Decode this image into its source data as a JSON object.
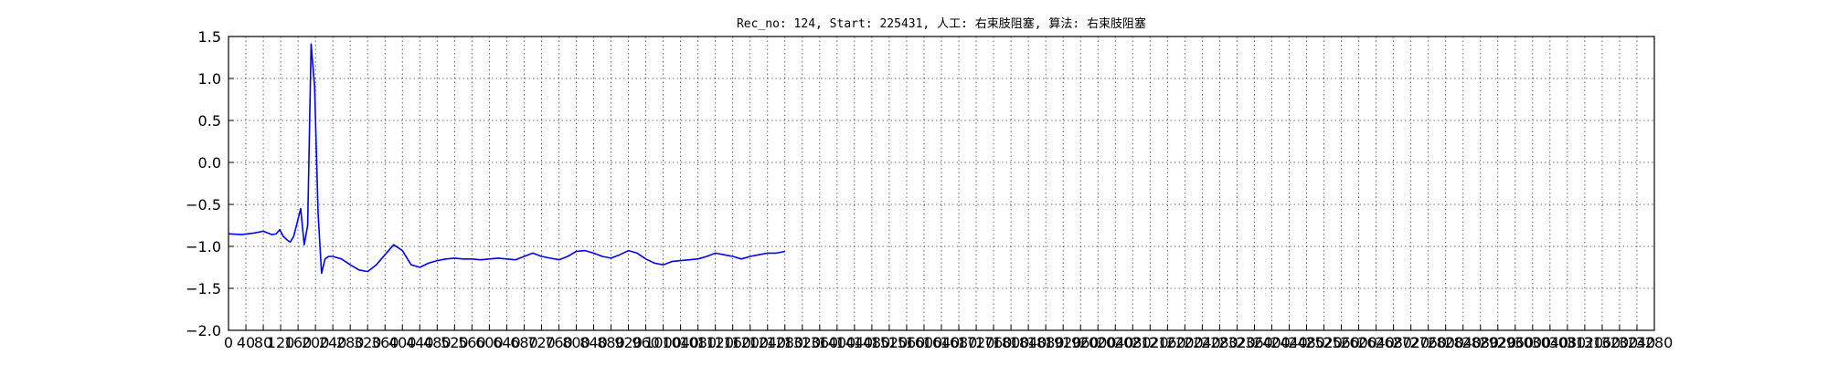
{
  "chart_data": {
    "type": "line",
    "title": "Rec_no: 124, Start: 225431, 人工: 右束肢阻塞, 算法: 右束肢阻塞",
    "xlabel": "",
    "ylabel": "",
    "xlim": [
      0,
      3280
    ],
    "ylim": [
      -2.0,
      1.5
    ],
    "grid": true,
    "yticks": [
      1.5,
      1.0,
      0.5,
      0.0,
      -0.5,
      -1.0,
      -1.5,
      -2.0
    ],
    "ytick_labels": [
      "1.5",
      "1.0",
      "0.5",
      "0.0",
      "−0.5",
      "−1.0",
      "−1.5",
      "−2.0"
    ],
    "xticks": [
      0,
      40,
      80,
      120,
      160,
      200,
      240,
      280,
      320,
      360,
      400,
      440,
      480,
      520,
      560,
      600,
      640,
      680,
      720,
      760,
      800,
      840,
      880,
      920,
      960,
      1000,
      1040,
      1080,
      1120,
      1160,
      1200,
      1240,
      1280,
      1320,
      1360,
      1400,
      1440,
      1480,
      1520,
      1560,
      1600,
      1640,
      1680,
      1720,
      1760,
      1800,
      1840,
      1880,
      1920,
      1960,
      2000,
      2040,
      2080,
      2120,
      2160,
      2200,
      2240,
      2280,
      2320,
      2360,
      2400,
      2440,
      2480,
      2520,
      2560,
      2600,
      2640,
      2680,
      2720,
      2760,
      2800,
      2840,
      2880,
      2920,
      2960,
      3000,
      3040,
      3080,
      3120,
      3160,
      3200,
      3240,
      3280
    ],
    "xtick_labels": [
      "0",
      "40",
      "80",
      "120",
      "160",
      "200",
      "240",
      "280",
      "320",
      "360",
      "400",
      "440",
      "480",
      "520",
      "560",
      "600",
      "640",
      "680",
      "720",
      "760",
      "800",
      "840",
      "880",
      "920",
      "960",
      "1000",
      "1040",
      "1080",
      "1120",
      "1160",
      "1200",
      "1240",
      "1280",
      "1320",
      "1360",
      "1400",
      "1440",
      "1480",
      "1520",
      "1560",
      "1600",
      "1640",
      "1680",
      "1720",
      "1760",
      "1800",
      "1840",
      "1880",
      "1920",
      "1960",
      "2000",
      "2040",
      "2080",
      "2120",
      "2160",
      "2200",
      "2240",
      "2280",
      "2320",
      "2360",
      "2400",
      "2440",
      "2480",
      "2520",
      "2560",
      "2600",
      "2640",
      "2680",
      "2720",
      "2760",
      "2800",
      "2840",
      "2880",
      "2920",
      "2960",
      "3000",
      "3040",
      "3080",
      "3120",
      "3160",
      "3200",
      "3240",
      "3280"
    ],
    "series": [
      {
        "color": "#0000ff",
        "x": [
          0,
          30,
          60,
          80,
          100,
          110,
          118,
          126,
          134,
          142,
          150,
          158,
          166,
          174,
          182,
          190,
          198,
          206,
          214,
          222,
          230,
          240,
          260,
          280,
          300,
          320,
          340,
          360,
          380,
          400,
          420,
          440,
          460,
          480,
          500,
          520,
          540,
          560,
          580,
          600,
          620,
          640,
          660,
          680,
          700,
          720,
          740,
          760,
          780,
          800,
          820,
          840,
          860,
          880,
          900,
          920,
          940,
          960,
          980,
          1000,
          1020,
          1040,
          1060,
          1080,
          1100,
          1120,
          1140,
          1160,
          1180,
          1200,
          1220,
          1240,
          1260,
          1280
        ],
        "y": [
          -0.85,
          -0.86,
          -0.84,
          -0.82,
          -0.86,
          -0.85,
          -0.8,
          -0.88,
          -0.92,
          -0.95,
          -0.88,
          -0.72,
          -0.55,
          -0.98,
          -0.75,
          1.41,
          0.9,
          -0.6,
          -1.32,
          -1.15,
          -1.12,
          -1.12,
          -1.15,
          -1.22,
          -1.28,
          -1.3,
          -1.22,
          -1.1,
          -0.98,
          -1.05,
          -1.22,
          -1.25,
          -1.2,
          -1.17,
          -1.15,
          -1.14,
          -1.15,
          -1.15,
          -1.16,
          -1.15,
          -1.14,
          -1.15,
          -1.16,
          -1.12,
          -1.08,
          -1.12,
          -1.14,
          -1.16,
          -1.12,
          -1.06,
          -1.05,
          -1.08,
          -1.12,
          -1.14,
          -1.1,
          -1.05,
          -1.08,
          -1.15,
          -1.2,
          -1.22,
          -1.18,
          -1.17,
          -1.16,
          -1.15,
          -1.12,
          -1.08,
          -1.1,
          -1.12,
          -1.15,
          -1.12,
          -1.1,
          -1.08,
          -1.08,
          -1.06
        ]
      }
    ]
  }
}
